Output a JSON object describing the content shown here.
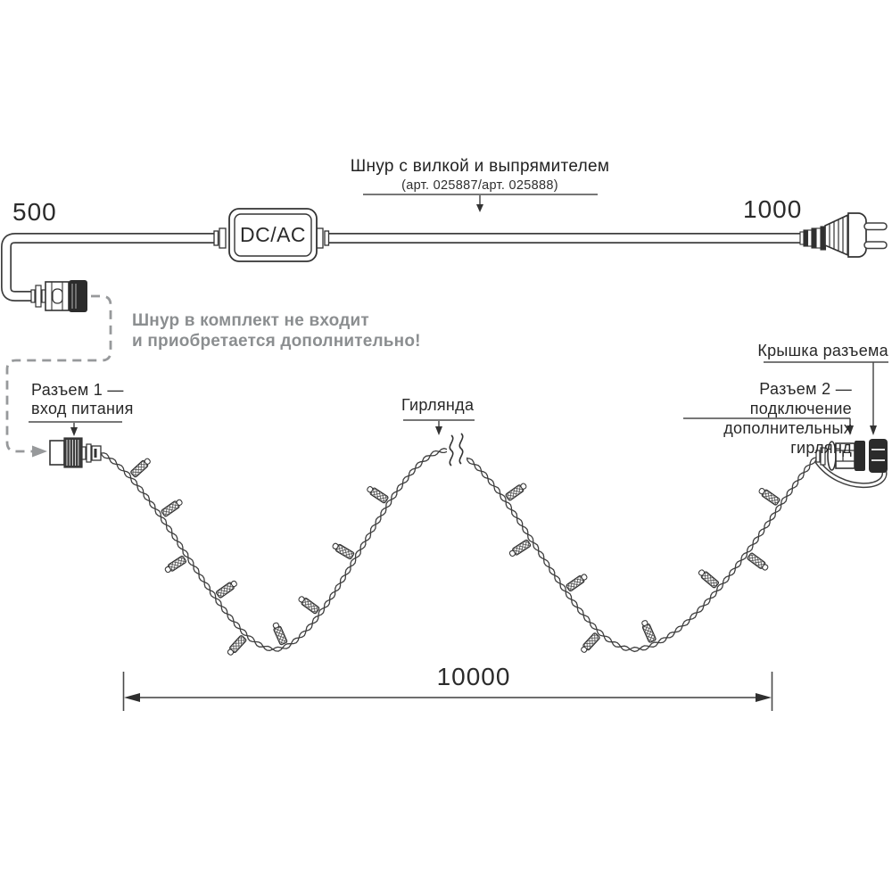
{
  "diagram": {
    "cord_title": "Шнур с вилкой и выпрямителем",
    "cord_subtitle": "(арт. 025887/арт. 025888)",
    "dim_500": "500",
    "dim_1000": "1000",
    "dim_10000": "10000",
    "converter_label": "DC/AC",
    "note_line1": "Шнур в комплект не входит",
    "note_line2": "и приобретается дополнительно!",
    "connector1_label_line1": "Разъем 1 —",
    "connector1_label_line2": "вход питания",
    "garland_label": "Гирлянда",
    "connector2_label_line1": "Разъем 2 — подключение",
    "connector2_label_line2": "дополнительных гирлянд",
    "cap_label": "Крышка разъема",
    "colors": {
      "ink": "#2f2f2f",
      "line": "#3f3f3f",
      "gray_note": "#8b8e90",
      "dashed_path": "#97999b"
    }
  }
}
